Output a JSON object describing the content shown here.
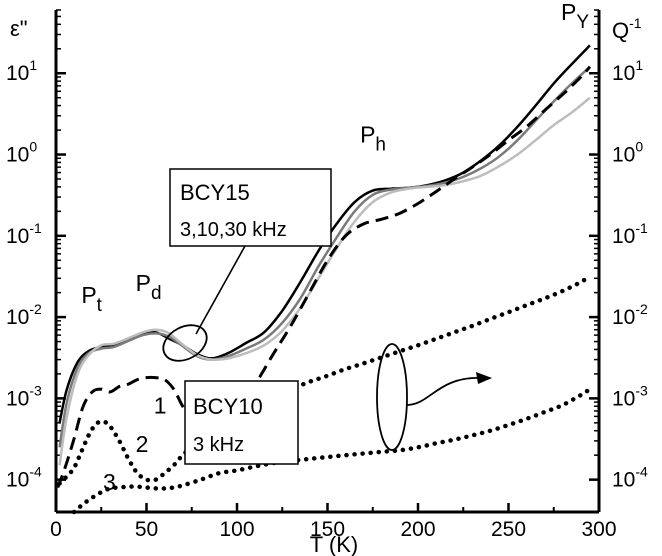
{
  "chart_data": {
    "type": "line",
    "x_axis": {
      "label": "T (K)",
      "range": [
        0,
        300
      ],
      "ticks": [
        0,
        50,
        100,
        150,
        200,
        250,
        300
      ]
    },
    "y_axis_left": {
      "label": "ε\"",
      "scale": "log",
      "range": [
        4e-05,
        60
      ]
    },
    "y_axis_right": {
      "label": "Q",
      "label_sup": "-1",
      "scale": "log"
    },
    "y_ticks": [
      {
        "value": 0.0001,
        "base": "10",
        "exp": "-4"
      },
      {
        "value": 0.001,
        "base": "10",
        "exp": "-3"
      },
      {
        "value": 0.01,
        "base": "10",
        "exp": "-2"
      },
      {
        "value": 0.1,
        "base": "10",
        "exp": "-1"
      },
      {
        "value": 1,
        "base": "10",
        "exp": "0"
      },
      {
        "value": 10,
        "base": "10",
        "exp": "1"
      }
    ],
    "annotations": [
      {
        "id": "pt",
        "base": "P",
        "sub": "t",
        "x": 14,
        "y": 0.015
      },
      {
        "id": "pd",
        "base": "P",
        "sub": "d",
        "x": 44,
        "y": 0.021
      },
      {
        "id": "ph",
        "base": "P",
        "sub": "h",
        "x": 168,
        "y": 1.4
      },
      {
        "id": "py",
        "base": "P",
        "sub": "Y",
        "x": 279,
        "y": 45
      },
      {
        "id": "n1",
        "text": "1",
        "x": 54,
        "y": 0.00065
      },
      {
        "id": "n2",
        "text": "2",
        "x": 44,
        "y": 0.00022
      },
      {
        "id": "n3",
        "text": "3",
        "x": 26,
        "y": 7.5e-05
      }
    ],
    "boxes": [
      {
        "id": "bcy15",
        "title": "BCY15",
        "subtitle": "3,10,30 kHz",
        "x0": 60,
        "x1": 144,
        "y0": 0.06,
        "y1": 0.65
      },
      {
        "id": "bcy10",
        "title": "BCY10",
        "subtitle": "3 kHz",
        "x0": 67,
        "x1": 123,
        "y0": 8e-05,
        "y1": 0.0011
      }
    ],
    "series": [
      {
        "color": "#000000",
        "dash": "solid",
        "width": 2.5,
        "x": [
          2,
          6,
          12,
          18,
          25,
          32,
          40,
          48,
          55,
          62,
          70,
          78,
          86,
          95,
          105,
          115,
          125,
          135,
          145,
          155,
          165,
          175,
          185,
          195,
          205,
          215,
          225,
          235,
          245,
          255,
          265,
          275,
          285,
          295
        ],
        "y": [
          0.0005,
          0.0013,
          0.0028,
          0.0038,
          0.0043,
          0.0044,
          0.0052,
          0.0062,
          0.0065,
          0.0055,
          0.0045,
          0.0035,
          0.0031,
          0.0036,
          0.0048,
          0.0065,
          0.012,
          0.027,
          0.065,
          0.14,
          0.26,
          0.36,
          0.38,
          0.39,
          0.42,
          0.48,
          0.6,
          0.85,
          1.3,
          2.2,
          4.0,
          7.5,
          13,
          22
        ]
      },
      {
        "color": "#7a7a7a",
        "dash": "solid",
        "width": 2.5,
        "x": [
          2,
          6,
          12,
          18,
          25,
          32,
          40,
          48,
          55,
          62,
          70,
          78,
          86,
          95,
          105,
          115,
          125,
          135,
          145,
          155,
          165,
          175,
          185,
          195,
          205,
          215,
          225,
          235,
          245,
          255,
          265,
          275,
          285,
          295
        ],
        "y": [
          0.00025,
          0.0009,
          0.0024,
          0.0036,
          0.0041,
          0.0043,
          0.0051,
          0.006,
          0.0063,
          0.0058,
          0.0044,
          0.0033,
          0.003,
          0.0033,
          0.0041,
          0.0053,
          0.0085,
          0.017,
          0.042,
          0.095,
          0.2,
          0.32,
          0.37,
          0.39,
          0.41,
          0.45,
          0.53,
          0.68,
          0.95,
          1.5,
          2.6,
          4.5,
          7.5,
          12
        ]
      },
      {
        "color": "#bdbdbd",
        "dash": "solid",
        "width": 2.5,
        "x": [
          2,
          6,
          12,
          18,
          25,
          32,
          40,
          48,
          55,
          62,
          70,
          78,
          86,
          95,
          105,
          115,
          125,
          135,
          145,
          155,
          165,
          175,
          185,
          195,
          205,
          215,
          225,
          235,
          245,
          255,
          265,
          275,
          285,
          295
        ],
        "y": [
          0.00015,
          0.0006,
          0.002,
          0.0034,
          0.0045,
          0.0047,
          0.0055,
          0.0065,
          0.007,
          0.0064,
          0.0046,
          0.0034,
          0.003,
          0.0031,
          0.0036,
          0.0045,
          0.0068,
          0.013,
          0.03,
          0.07,
          0.15,
          0.26,
          0.34,
          0.38,
          0.4,
          0.42,
          0.47,
          0.55,
          0.72,
          1.0,
          1.5,
          2.3,
          3.3,
          5.0
        ]
      },
      {
        "color": "#000000",
        "dash": "dashed",
        "width": 3,
        "x": [
          1,
          5,
          10,
          15,
          20,
          25,
          30,
          35,
          40,
          45,
          50,
          55,
          60,
          65,
          70,
          75,
          80,
          90,
          100,
          110,
          120,
          130,
          140,
          150,
          160,
          170,
          180,
          190,
          200,
          210,
          220,
          230,
          240,
          250,
          260,
          270,
          280,
          290,
          295
        ],
        "y": [
          8e-05,
          0.00014,
          0.00032,
          0.0008,
          0.0012,
          0.0013,
          0.0012,
          0.0014,
          0.0015,
          0.0017,
          0.0018,
          0.0018,
          0.0017,
          0.0013,
          0.0008,
          0.00055,
          0.00045,
          0.0005,
          0.0008,
          0.0015,
          0.0035,
          0.008,
          0.02,
          0.05,
          0.1,
          0.14,
          0.16,
          0.19,
          0.25,
          0.35,
          0.5,
          0.7,
          1.0,
          1.5,
          2.2,
          3.5,
          5.5,
          9.0,
          12
        ]
      },
      {
        "color": "#000000",
        "dash": "dotted",
        "width": 4.5,
        "x": [
          2,
          6,
          10,
          14,
          18,
          22,
          26,
          30,
          35,
          40,
          45,
          50,
          55,
          60,
          65,
          70,
          80,
          90,
          100,
          110,
          120,
          130,
          140,
          150,
          160,
          170,
          180,
          190,
          200,
          210,
          220,
          230,
          240,
          250,
          260,
          270,
          280,
          290,
          295
        ],
        "y": [
          9e-05,
          0.00011,
          0.00014,
          0.00022,
          0.00035,
          0.00048,
          0.00052,
          0.00045,
          0.0003,
          0.00018,
          0.00012,
          0.0001,
          0.0001,
          0.00012,
          0.00015,
          0.0002,
          0.00032,
          0.00048,
          0.0007,
          0.0009,
          0.0011,
          0.0013,
          0.0016,
          0.0019,
          0.0023,
          0.0027,
          0.0032,
          0.0038,
          0.0045,
          0.0054,
          0.0065,
          0.0078,
          0.0095,
          0.0115,
          0.014,
          0.017,
          0.021,
          0.027,
          0.032
        ]
      },
      {
        "color": "#000000",
        "dash": "dotted",
        "width": 4.5,
        "x": [
          10,
          15,
          20,
          25,
          30,
          35,
          40,
          45,
          50,
          55,
          60,
          65,
          70,
          80,
          90,
          100,
          110,
          120,
          130,
          140,
          150,
          160,
          170,
          180,
          190,
          200,
          210,
          220,
          230,
          240,
          250,
          260,
          270,
          280,
          290,
          295
        ],
        "y": [
          4e-05,
          5e-05,
          6e-05,
          7e-05,
          7.8e-05,
          8e-05,
          8.2e-05,
          8.2e-05,
          8e-05,
          7.8e-05,
          7.8e-05,
          8e-05,
          8.5e-05,
          0.0001,
          0.00012,
          0.00013,
          0.000145,
          0.00016,
          0.00017,
          0.00018,
          0.00019,
          0.0002,
          0.00021,
          0.00022,
          0.00023,
          0.00025,
          0.00028,
          0.00031,
          0.00035,
          0.0004,
          0.00047,
          0.00056,
          0.00068,
          0.00083,
          0.0011,
          0.0013
        ]
      }
    ]
  }
}
